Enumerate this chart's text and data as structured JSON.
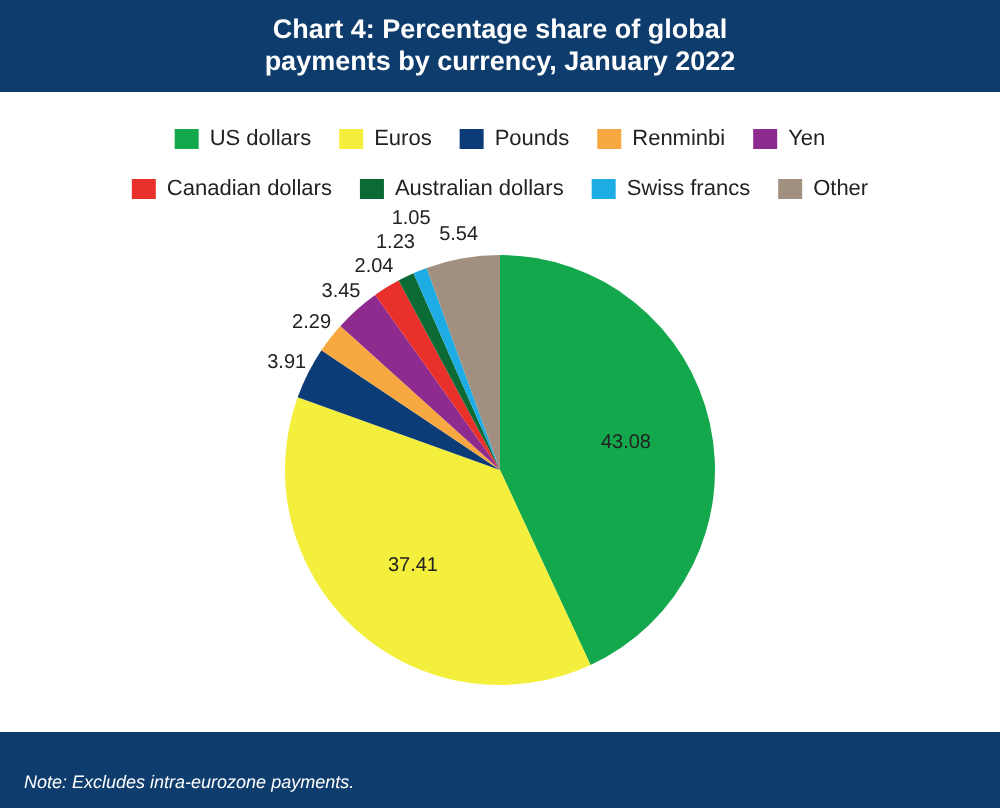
{
  "chart_data": {
    "type": "pie",
    "title": "Chart 4: Percentage share of global payments by currency, January 2022",
    "categories": [
      "US dollars",
      "Euros",
      "Pounds",
      "Renminbi",
      "Yen",
      "Canadian dollars",
      "Australian dollars",
      "Swiss francs",
      "Other"
    ],
    "values": [
      43.08,
      37.41,
      3.91,
      2.29,
      3.45,
      2.04,
      1.23,
      1.05,
      5.54
    ],
    "colors": [
      "#12a84b",
      "#f4ee3c",
      "#0c3c78",
      "#f7a841",
      "#8d2c8e",
      "#e9302b",
      "#0c6a35",
      "#1dace3",
      "#a18f80"
    ],
    "data_labels": true,
    "legend": "top",
    "annotations": [
      "Note: Excludes intra-eurozone payments."
    ]
  }
}
